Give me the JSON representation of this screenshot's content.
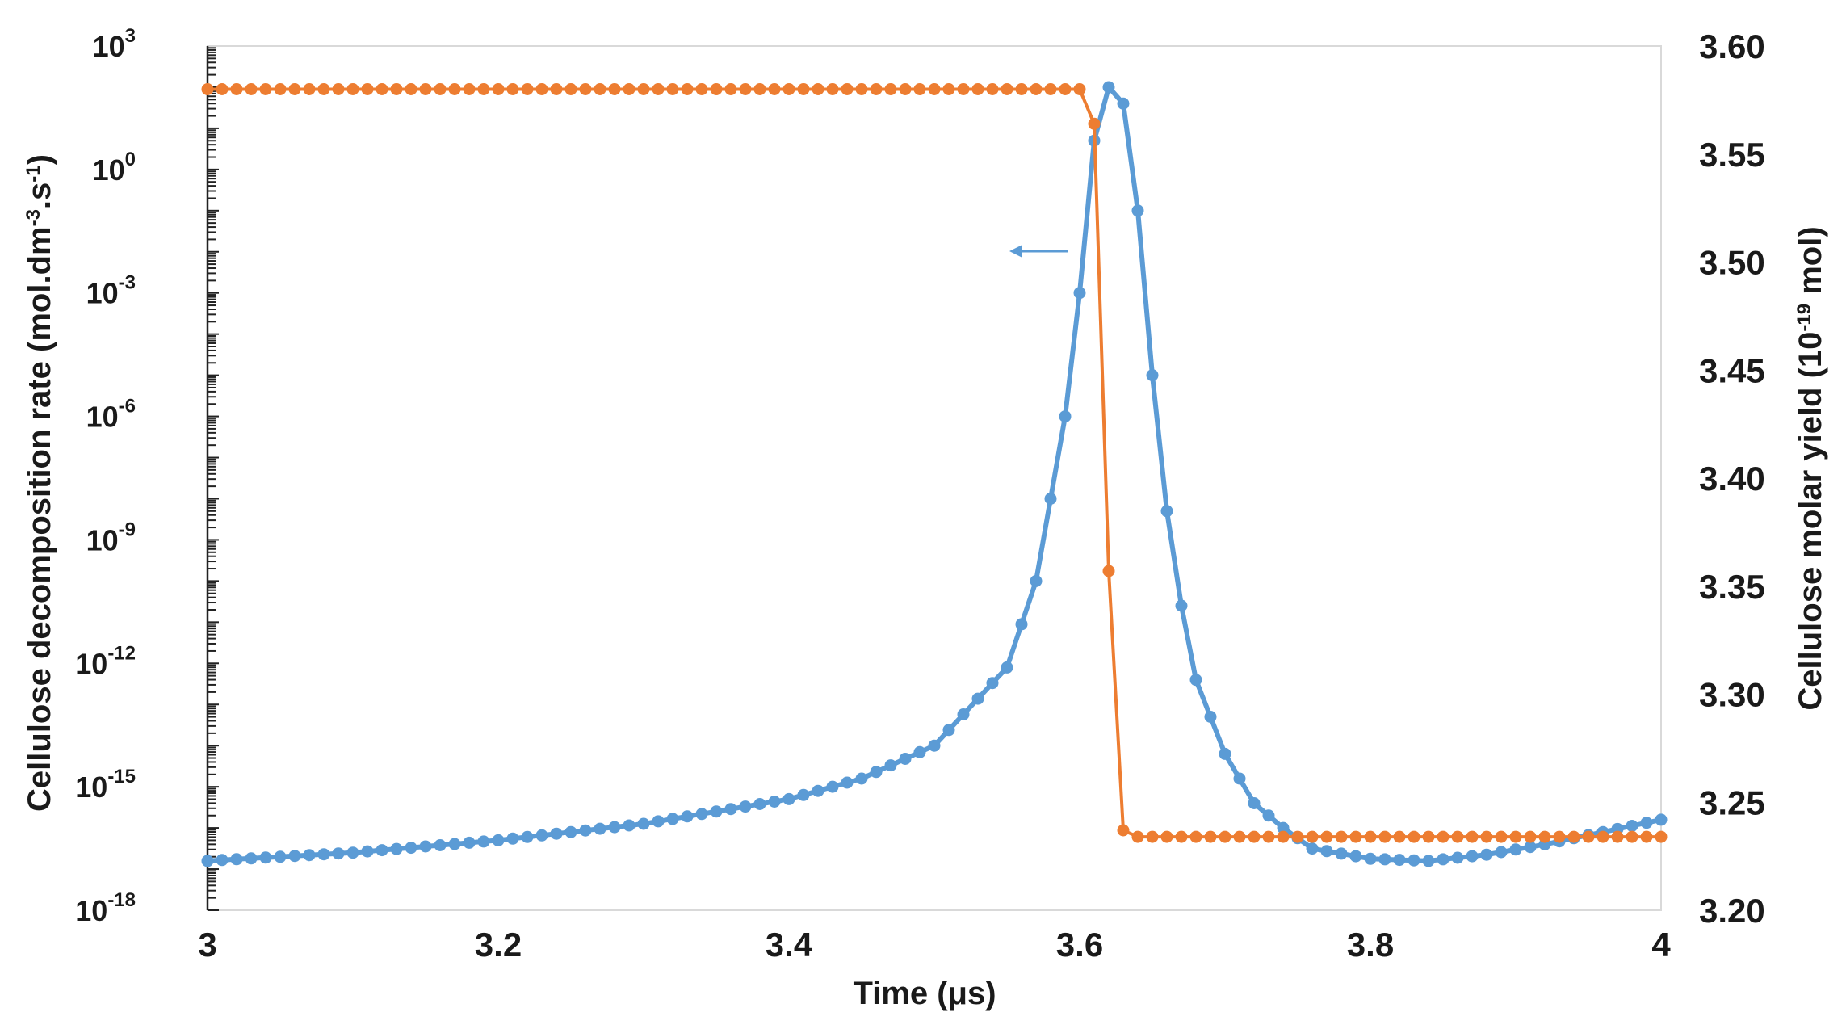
{
  "chart_data": {
    "type": "line",
    "xlabel": "Time (μs)",
    "ylabel_left": {
      "main": "Cellulose decomposition rate (mol.dm",
      "sup1": "-3",
      "mid": ".s",
      "sup2": "-1",
      "end": ")"
    },
    "ylabel_right": {
      "main": "Cellulose molar yield (10",
      "sup": "-19",
      "end": " mol)"
    },
    "x_ticks": [
      "3",
      "3.2",
      "3.4",
      "3.6",
      "3.8",
      "4"
    ],
    "xlim": [
      3,
      4
    ],
    "y_left_scale": "log",
    "y_left_ticks": [
      {
        "base": "10",
        "exp": "3"
      },
      {
        "base": "10",
        "exp": "0"
      },
      {
        "base": "10",
        "exp": "-3"
      },
      {
        "base": "10",
        "exp": "-6"
      },
      {
        "base": "10",
        "exp": "-9"
      },
      {
        "base": "10",
        "exp": "-12"
      },
      {
        "base": "10",
        "exp": "-15"
      },
      {
        "base": "10",
        "exp": "-18"
      }
    ],
    "y_left_lim_log10": [
      -18,
      3
    ],
    "y_right_ticks": [
      "3.60",
      "3.55",
      "3.50",
      "3.45",
      "3.40",
      "3.35",
      "3.30",
      "3.25",
      "3.20"
    ],
    "y_right_lim": [
      3.2,
      3.6
    ],
    "grid": false,
    "series": [
      {
        "axis": "left",
        "color": "#5b9bd5",
        "x_range": [
          3,
          4
        ],
        "n_points": 101,
        "log10_y_keypoints": [
          [
            3.0,
            -16.8
          ],
          [
            3.1,
            -16.6
          ],
          [
            3.2,
            -16.3
          ],
          [
            3.3,
            -15.9
          ],
          [
            3.4,
            -15.3
          ],
          [
            3.45,
            -14.8
          ],
          [
            3.5,
            -14.0
          ],
          [
            3.55,
            -12.1
          ],
          [
            3.57,
            -10.0
          ],
          [
            3.59,
            -6.0
          ],
          [
            3.6,
            -3.0
          ],
          [
            3.61,
            0.7
          ],
          [
            3.62,
            2.0
          ],
          [
            3.63,
            1.6
          ],
          [
            3.64,
            -1.0
          ],
          [
            3.65,
            -5.0
          ],
          [
            3.66,
            -8.3
          ],
          [
            3.67,
            -10.6
          ],
          [
            3.68,
            -12.4
          ],
          [
            3.7,
            -14.2
          ],
          [
            3.72,
            -15.4
          ],
          [
            3.74,
            -16.0
          ],
          [
            3.76,
            -16.5
          ],
          [
            3.8,
            -16.75
          ],
          [
            3.84,
            -16.8
          ],
          [
            3.88,
            -16.65
          ],
          [
            3.92,
            -16.4
          ],
          [
            3.96,
            -16.1
          ],
          [
            4.0,
            -15.8
          ]
        ]
      },
      {
        "axis": "right",
        "color": "#ed7d31",
        "x_range": [
          3,
          4
        ],
        "n_points": 101,
        "y_keypoints": [
          [
            3.0,
            3.58
          ],
          [
            3.6,
            3.58
          ],
          [
            3.61,
            3.564
          ],
          [
            3.62,
            3.357
          ],
          [
            3.63,
            3.237
          ],
          [
            3.64,
            3.234
          ],
          [
            4.0,
            3.234
          ]
        ]
      }
    ],
    "annotation_arrow": {
      "direction": "left",
      "color": "#5b9bd5"
    }
  }
}
